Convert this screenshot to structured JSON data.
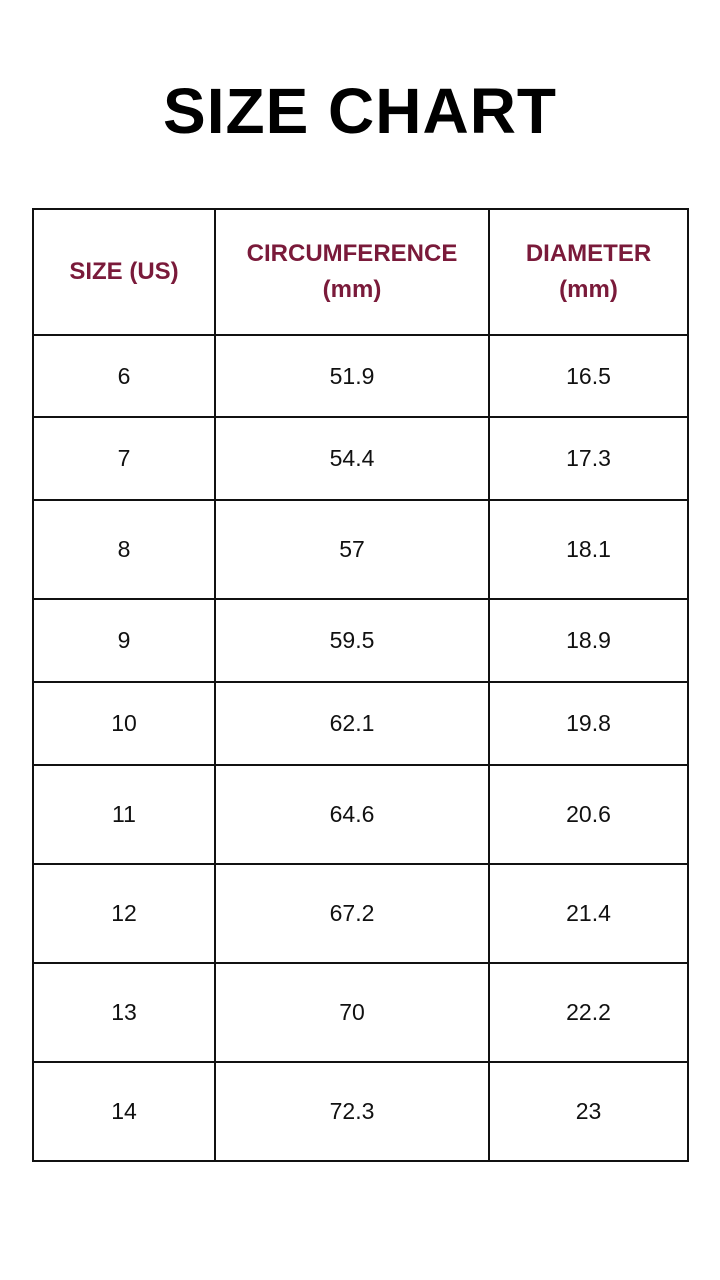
{
  "title": "SIZE CHART",
  "colors": {
    "header_text": "#7a1a3a",
    "border": "#111111"
  },
  "table": {
    "headers": [
      [
        "SIZE (US)"
      ],
      [
        "CIRCUMFERENCE",
        "(mm)"
      ],
      [
        "DIAMETER",
        "(mm)"
      ]
    ],
    "rows": [
      [
        "6",
        "51.9",
        "16.5"
      ],
      [
        "7",
        "54.4",
        "17.3"
      ],
      [
        "8",
        "57",
        "18.1"
      ],
      [
        "9",
        "59.5",
        "18.9"
      ],
      [
        "10",
        "62.1",
        "19.8"
      ],
      [
        "11",
        "64.6",
        "20.6"
      ],
      [
        "12",
        "67.2",
        "21.4"
      ],
      [
        "13",
        "70",
        "22.2"
      ],
      [
        "14",
        "72.3",
        "23"
      ]
    ]
  }
}
